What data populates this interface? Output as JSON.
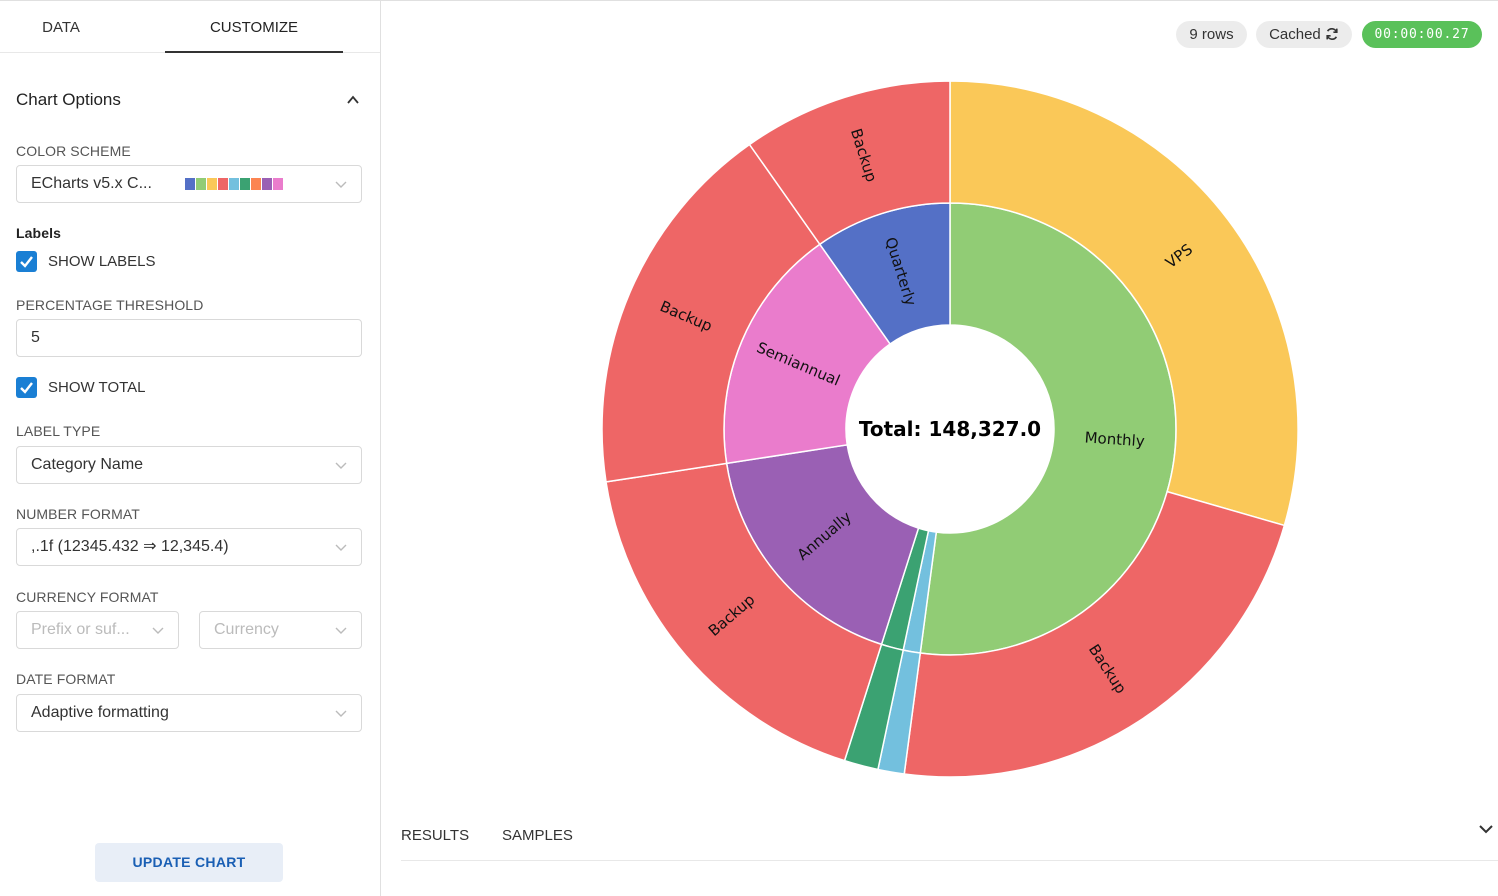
{
  "tabs": {
    "data": "DATA",
    "customize": "CUSTOMIZE"
  },
  "section": {
    "title": "Chart Options"
  },
  "color_scheme": {
    "label": "COLOR SCHEME",
    "value": "ECharts v5.x C...",
    "swatches": [
      "#5470c6",
      "#91cc75",
      "#fac858",
      "#ee6666",
      "#73c0de",
      "#3ba272",
      "#fc8452",
      "#9a60b4",
      "#ea7ccc"
    ]
  },
  "labels_section": {
    "title": "Labels",
    "show_labels": "SHOW LABELS"
  },
  "threshold": {
    "label": "PERCENTAGE THRESHOLD",
    "value": "5"
  },
  "show_total": "SHOW TOTAL",
  "label_type": {
    "label": "LABEL TYPE",
    "value": "Category Name"
  },
  "number_format": {
    "label": "NUMBER FORMAT",
    "value": ",.1f (12345.432 ⇒ 12,345.4)"
  },
  "currency_format": {
    "label": "CURRENCY FORMAT",
    "prefix_placeholder": "Prefix or suf...",
    "currency_placeholder": "Currency"
  },
  "date_format": {
    "label": "DATE FORMAT",
    "value": "Adaptive formatting"
  },
  "update_button": "UPDATE CHART",
  "status": {
    "rows": "9 rows",
    "cached": "Cached",
    "timer": "00:00:00.27"
  },
  "bottom_tabs": {
    "results": "RESULTS",
    "samples": "SAMPLES"
  },
  "chart_data": {
    "type": "sunburst",
    "total_label": "Total: 148,327.0",
    "inner": [
      {
        "name": "Monthly",
        "fraction": 0.521,
        "color": "#91cc75",
        "label": "Monthly"
      },
      {
        "name": "",
        "fraction": 0.0122,
        "color": "#73c0de",
        "label": ""
      },
      {
        "name": "",
        "fraction": 0.0158,
        "color": "#3ba272",
        "label": ""
      },
      {
        "name": "Annually",
        "fraction": 0.1767,
        "color": "#9a60b4",
        "label": "Annually"
      },
      {
        "name": "Semiannual",
        "fraction": 0.1766,
        "color": "#ea7ccc",
        "label": "Semiannual"
      },
      {
        "name": "Quarterly",
        "fraction": 0.0977,
        "color": "#5470c6",
        "label": "Quarterly"
      }
    ],
    "outer": [
      {
        "name": "VPS",
        "fraction": 0.2947,
        "color": "#fac858",
        "label": "VPS"
      },
      {
        "name": "Backup",
        "fraction": 0.2263,
        "color": "#ee6666",
        "label": "Backup"
      },
      {
        "name": "",
        "fraction": 0.0122,
        "color": "#73c0de",
        "label": ""
      },
      {
        "name": "",
        "fraction": 0.0158,
        "color": "#3ba272",
        "label": ""
      },
      {
        "name": "Backup",
        "fraction": 0.1767,
        "color": "#ee6666",
        "label": "Backup"
      },
      {
        "name": "Backup",
        "fraction": 0.1766,
        "color": "#ee6666",
        "label": "Backup"
      },
      {
        "name": "Backup",
        "fraction": 0.0977,
        "color": "#ee6666",
        "label": "Backup"
      }
    ]
  }
}
